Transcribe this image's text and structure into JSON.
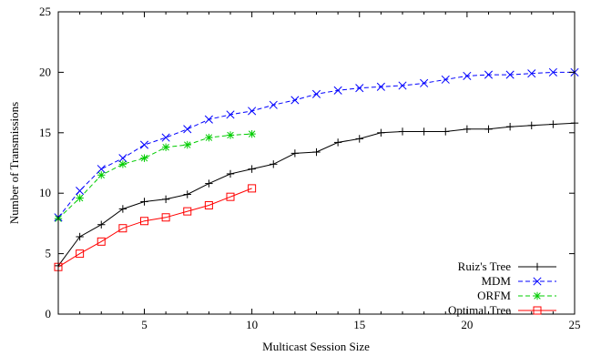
{
  "chart_data": {
    "type": "line",
    "xlabel": "Multicast Session Size",
    "ylabel": "Number of Transmissions",
    "xlim": [
      1,
      25
    ],
    "ylim": [
      0,
      25
    ],
    "x_ticks": [
      5,
      10,
      15,
      20,
      25
    ],
    "y_ticks": [
      0,
      5,
      10,
      15,
      20,
      25
    ],
    "grid": false,
    "legend_position": "bottom-right",
    "series": [
      {
        "name": "Ruiz's Tree",
        "color": "#000000",
        "marker": "plus",
        "dash": "solid",
        "x": [
          1,
          2,
          3,
          4,
          5,
          6,
          7,
          8,
          9,
          10,
          11,
          12,
          13,
          14,
          15,
          16,
          17,
          18,
          19,
          20,
          21,
          22,
          23,
          24,
          25
        ],
        "y": [
          4.0,
          6.4,
          7.4,
          8.7,
          9.3,
          9.5,
          9.9,
          10.8,
          11.6,
          12.0,
          12.4,
          13.3,
          13.4,
          14.2,
          14.5,
          15.0,
          15.1,
          15.1,
          15.1,
          15.3,
          15.3,
          15.5,
          15.6,
          15.7,
          15.8
        ]
      },
      {
        "name": "MDM",
        "color": "#0000ff",
        "marker": "x",
        "dash": "dashed",
        "x": [
          1,
          2,
          3,
          4,
          5,
          6,
          7,
          8,
          9,
          10,
          11,
          12,
          13,
          14,
          15,
          16,
          17,
          18,
          19,
          20,
          21,
          22,
          23,
          24,
          25
        ],
        "y": [
          8.0,
          10.2,
          12.0,
          12.9,
          14.0,
          14.6,
          15.3,
          16.1,
          16.5,
          16.8,
          17.3,
          17.7,
          18.2,
          18.5,
          18.7,
          18.8,
          18.9,
          19.1,
          19.4,
          19.7,
          19.8,
          19.8,
          19.9,
          20.0,
          20.0
        ]
      },
      {
        "name": "ORFM",
        "color": "#00cc00",
        "marker": "star",
        "dash": "dashed",
        "x": [
          1,
          2,
          3,
          4,
          5,
          6,
          7,
          8,
          9,
          10
        ],
        "y": [
          7.9,
          9.6,
          11.5,
          12.4,
          12.9,
          13.8,
          14.0,
          14.6,
          14.8,
          14.9
        ]
      },
      {
        "name": "Optimal Tree",
        "color": "#ff0000",
        "marker": "square",
        "dash": "solid",
        "x": [
          1,
          2,
          3,
          4,
          5,
          6,
          7,
          8,
          9,
          10
        ],
        "y": [
          3.9,
          5.0,
          6.0,
          7.1,
          7.7,
          8.0,
          8.5,
          9.0,
          9.7,
          10.4
        ]
      }
    ]
  }
}
